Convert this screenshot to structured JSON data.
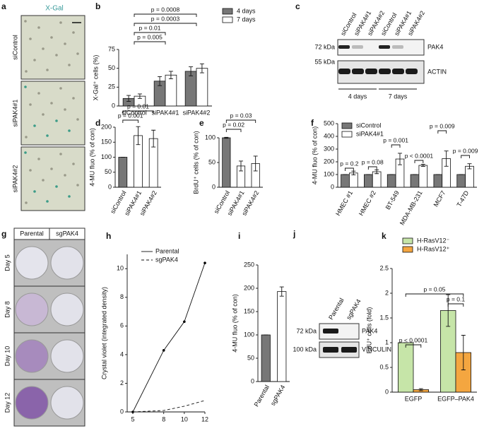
{
  "images": {
    "a": {
      "panel": "a",
      "title": "X-Gal",
      "rows": [
        "siControl",
        "siPAK4#1",
        "siPAK4#2"
      ]
    },
    "c": {
      "panel": "c",
      "lanes": [
        "siControl",
        "siPAK4#1",
        "siPAK4#2",
        "siControl",
        "siPAK4#1",
        "siPAK4#2"
      ],
      "markers": [
        "72 kDa",
        "55 kDa"
      ],
      "bands": [
        "PAK4",
        "ACTIN"
      ],
      "groups": [
        "4 days",
        "7 days"
      ]
    },
    "g": {
      "panel": "g",
      "columns": [
        "Parental",
        "sgPAK4"
      ],
      "rows": [
        "Day 5",
        "Day 8",
        "Day 10",
        "Day 12"
      ]
    },
    "j": {
      "panel": "j",
      "lanes": [
        "Parental",
        "sgPAK4"
      ],
      "markers": [
        "72 kDa",
        "100 kDa"
      ],
      "bands": [
        "PAK4",
        "VINCULIN"
      ]
    }
  },
  "chart_data": [
    {
      "type": "bar",
      "panel": "b",
      "ylabel": "X-Gal⁺ cells (%)",
      "categories": [
        "siControl",
        "siPAK4#1",
        "siPAK4#2"
      ],
      "series": [
        {
          "name": "4 days",
          "color": "#777777",
          "values": [
            10,
            33,
            46
          ],
          "errors": [
            4,
            6,
            6
          ]
        },
        {
          "name": "7 days",
          "color": "#ffffff",
          "values": [
            13,
            41,
            50
          ],
          "errors": [
            3,
            5,
            6
          ]
        }
      ],
      "ylim": [
        0,
        75
      ],
      "yticks": [
        0,
        25,
        50,
        75
      ],
      "annotations": [
        "p = 0.0008",
        "p = 0.0003",
        "p = 0.01",
        "p = 0.005"
      ]
    },
    {
      "type": "bar",
      "panel": "d",
      "ylabel": "4-MU fluo (% of con)",
      "categories": [
        "siControl",
        "siPAK4#1",
        "siPAK4#2"
      ],
      "values": [
        100,
        172,
        162
      ],
      "errors": [
        0,
        30,
        28
      ],
      "colors": [
        "#777777",
        "#ffffff",
        "#ffffff"
      ],
      "ylim": [
        0,
        200
      ],
      "yticks": [
        0,
        50,
        100,
        150,
        200
      ],
      "annotations": [
        "p = 0.01",
        "p = 0.001"
      ]
    },
    {
      "type": "bar",
      "panel": "e",
      "ylabel": "BrdU⁺ cells (% of con)",
      "categories": [
        "siControl",
        "siPAK4#1",
        "siPAK4#2"
      ],
      "values": [
        100,
        43,
        48
      ],
      "errors": [
        1,
        10,
        15
      ],
      "colors": [
        "#777777",
        "#ffffff",
        "#ffffff"
      ],
      "ylim": [
        0,
        100
      ],
      "yticks": [
        0,
        50,
        100
      ],
      "annotations": [
        "p = 0.03",
        "p = 0.02"
      ]
    },
    {
      "type": "bar",
      "panel": "f",
      "ylabel": "4-MU fluo (% of con)",
      "categories": [
        "HMEC #1",
        "HMEC #2",
        "BT-549",
        "MDA-MB-231",
        "MCF7",
        "T-47D"
      ],
      "series": [
        {
          "name": "siControl",
          "color": "#777777",
          "values": [
            100,
            100,
            100,
            100,
            100,
            100
          ],
          "errors": [
            0,
            0,
            0,
            0,
            0,
            0
          ]
        },
        {
          "name": "siPAK4#1",
          "color": "#ffffff",
          "values": [
            112,
            122,
            222,
            172,
            225,
            165
          ],
          "errors": [
            15,
            15,
            45,
            8,
            60,
            20
          ]
        }
      ],
      "ylim": [
        0,
        500
      ],
      "yticks": [
        0,
        100,
        200,
        300,
        400,
        500
      ],
      "annotations": [
        "p = 0.2",
        "p = 0.08",
        "p = 0.001",
        "p < 0.0001",
        "p = 0.009",
        "p = 0.009"
      ]
    },
    {
      "type": "line",
      "panel": "h",
      "ylabel": "Crystal violet (integrated density)",
      "x": [
        5,
        8,
        10,
        12
      ],
      "series": [
        {
          "name": "Parental",
          "color": "#000000",
          "linestyle": "solid",
          "marker": true,
          "values": [
            0,
            4.3,
            6.3,
            10.4
          ]
        },
        {
          "name": "sgPAK4",
          "color": "#000000",
          "linestyle": "dashed",
          "marker": false,
          "values": [
            0,
            0.1,
            0.4,
            0.8
          ]
        }
      ],
      "xlim": [
        5,
        12
      ],
      "xticks": [
        5,
        8,
        10,
        12
      ],
      "ylim": [
        0,
        11
      ],
      "yticks": [
        0,
        2,
        4,
        6,
        8,
        10
      ]
    },
    {
      "type": "bar",
      "panel": "i",
      "ylabel": "4-MU fluo (% of con)",
      "categories": [
        "Parental",
        "sgPAK4"
      ],
      "values": [
        100,
        193
      ],
      "errors": [
        0,
        10
      ],
      "colors": [
        "#777777",
        "#ffffff"
      ],
      "ylim": [
        0,
        250
      ],
      "yticks": [
        0,
        50,
        100,
        150,
        200,
        250
      ]
    },
    {
      "type": "bar",
      "panel": "k",
      "ylabel": "EdU⁺ cells (fold)",
      "categories": [
        "EGFP",
        "EGFP–PAK4"
      ],
      "series": [
        {
          "name": "H-RasV12⁻",
          "color": "#c6e5a8",
          "values": [
            1,
            1.65
          ],
          "errors": [
            0,
            0.32
          ]
        },
        {
          "name": "H-RasV12⁺",
          "color": "#f4a640",
          "values": [
            0.05,
            0.8
          ],
          "errors": [
            0.02,
            0.35
          ]
        }
      ],
      "ylim": [
        0,
        2.5
      ],
      "yticks": [
        0,
        0.5,
        1,
        1.5,
        2,
        2.5
      ],
      "annotations": [
        "p < 0.0001",
        "p = 0.1",
        "p = 0.05"
      ]
    }
  ]
}
